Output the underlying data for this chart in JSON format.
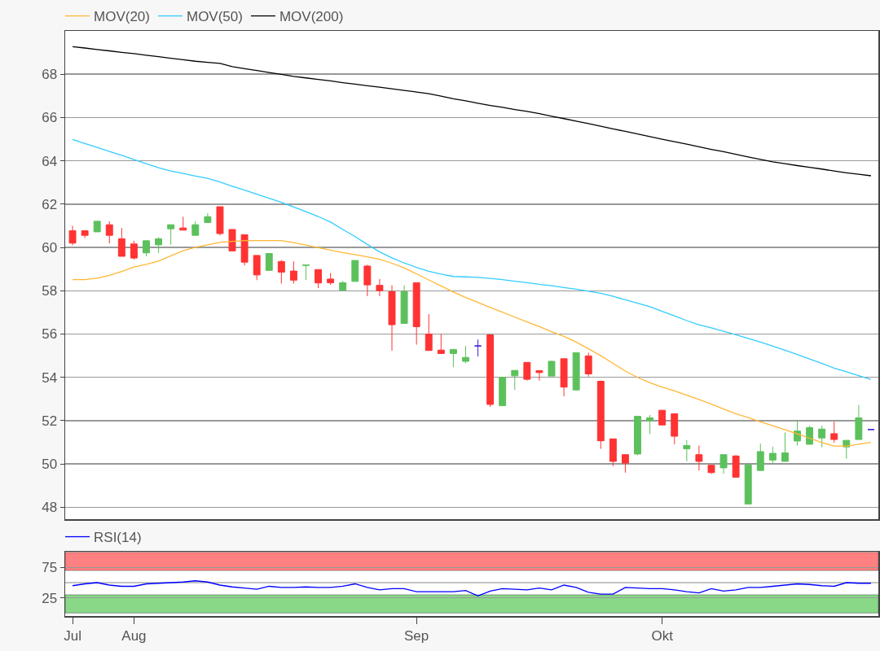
{
  "chart_data": [
    {
      "type": "candlestick",
      "ylim": [
        47.45,
        70
      ],
      "yticks": [
        48,
        50,
        52,
        54,
        56,
        58,
        60,
        62,
        64,
        66,
        68
      ],
      "grid": "y",
      "legend": "top left",
      "tick_labels": "y",
      "categories": [
        null,
        null,
        null,
        null,
        null,
        null,
        null,
        null,
        null,
        null,
        null,
        null,
        null,
        null,
        null,
        null,
        null,
        null,
        null,
        null,
        null,
        null,
        null,
        null,
        null,
        null,
        null,
        null,
        null,
        null,
        null,
        null,
        null,
        null,
        null,
        null,
        null,
        null,
        null,
        null,
        null,
        null,
        null,
        null,
        null,
        null,
        null,
        null,
        null,
        null,
        null,
        null,
        null,
        null,
        null,
        null,
        null,
        null,
        null,
        null,
        null,
        null,
        null,
        null,
        null,
        null
      ],
      "ohlc": [
        [
          60.77,
          61.0,
          60.1,
          60.2
        ],
        [
          60.77,
          60.77,
          60.43,
          60.56
        ],
        [
          60.72,
          61.21,
          60.72,
          61.21
        ],
        [
          61.05,
          61.21,
          60.19,
          60.56
        ],
        [
          60.4,
          60.9,
          59.59,
          59.59
        ],
        [
          60.16,
          60.31,
          59.44,
          59.51
        ],
        [
          59.75,
          60.31,
          59.59,
          60.31
        ],
        [
          60.12,
          60.47,
          59.75,
          60.4
        ],
        [
          60.86,
          61.05,
          60.12,
          61.05
        ],
        [
          60.9,
          61.42,
          60.8,
          60.8
        ],
        [
          60.56,
          61.21,
          60.56,
          61.05
        ],
        [
          61.15,
          61.58,
          61.15,
          61.42
        ],
        [
          61.88,
          61.88,
          60.56,
          60.64
        ],
        [
          60.83,
          60.83,
          59.84,
          59.84
        ],
        [
          60.59,
          60.59,
          59.17,
          59.32
        ],
        [
          59.63,
          59.63,
          58.49,
          58.73
        ],
        [
          58.94,
          59.72,
          58.94,
          59.72
        ],
        [
          59.35,
          59.42,
          58.33,
          58.86
        ],
        [
          58.91,
          59.36,
          58.33,
          58.49
        ],
        [
          59.17,
          59.19,
          58.49,
          59.19
        ],
        [
          58.98,
          58.98,
          58.12,
          58.36
        ],
        [
          58.54,
          58.82,
          58.27,
          58.37
        ],
        [
          58.02,
          58.45,
          58.02,
          58.37
        ],
        [
          58.43,
          59.4,
          58.43,
          59.4
        ],
        [
          59.14,
          59.2,
          57.75,
          58.27
        ],
        [
          58.25,
          58.54,
          57.75,
          58.0
        ],
        [
          57.96,
          58.25,
          55.23,
          56.43
        ],
        [
          56.49,
          58.25,
          56.49,
          57.96
        ],
        [
          58.37,
          58.37,
          55.51,
          56.34
        ],
        [
          56.0,
          56.92,
          55.24,
          55.24
        ],
        [
          55.26,
          56.0,
          55.1,
          55.1
        ],
        [
          55.1,
          55.29,
          54.47,
          55.29
        ],
        [
          54.74,
          55.45,
          54.65,
          54.92
        ],
        [
          55.45,
          55.75,
          54.96,
          55.45
        ],
        [
          55.96,
          55.96,
          52.63,
          52.75
        ],
        [
          52.69,
          54.0,
          52.69,
          54.0
        ],
        [
          54.07,
          54.32,
          53.42,
          54.32
        ],
        [
          54.69,
          54.69,
          53.85,
          53.91
        ],
        [
          54.31,
          54.31,
          53.85,
          54.22
        ],
        [
          54.06,
          54.77,
          54.06,
          54.74
        ],
        [
          54.86,
          54.86,
          53.12,
          53.55
        ],
        [
          53.42,
          55.14,
          53.38,
          55.14
        ],
        [
          54.99,
          55.14,
          54.04,
          54.16
        ],
        [
          53.82,
          53.85,
          50.7,
          51.07
        ],
        [
          51.16,
          51.16,
          49.9,
          50.12
        ],
        [
          50.43,
          50.43,
          49.6,
          50.04
        ],
        [
          50.46,
          52.2,
          50.4,
          52.2
        ],
        [
          51.99,
          52.26,
          51.38,
          52.13
        ],
        [
          52.48,
          52.48,
          51.8,
          51.8
        ],
        [
          52.32,
          52.32,
          50.91,
          51.28
        ],
        [
          50.7,
          51.1,
          50.12,
          50.85
        ],
        [
          50.43,
          50.85,
          49.7,
          50.12
        ],
        [
          49.94,
          49.94,
          49.54,
          49.6
        ],
        [
          49.82,
          50.43,
          49.55,
          50.43
        ],
        [
          50.37,
          50.4,
          49.39,
          49.39
        ],
        [
          48.15,
          50.06,
          48.15,
          49.96
        ],
        [
          49.7,
          50.94,
          49.7,
          50.57
        ],
        [
          50.18,
          50.79,
          50.0,
          50.49
        ],
        [
          50.12,
          51.46,
          50.12,
          50.51
        ],
        [
          51.06,
          52.04,
          50.85,
          51.52
        ],
        [
          50.91,
          51.77,
          50.91,
          51.68
        ],
        [
          51.2,
          51.77,
          50.77,
          51.61
        ],
        [
          51.4,
          51.95,
          50.98,
          51.13
        ],
        [
          50.79,
          51.09,
          50.24,
          51.09
        ],
        [
          51.13,
          52.72,
          51.13,
          52.13
        ],
        [
          51.59,
          51.59,
          51.59,
          51.59
        ]
      ],
      "colors": [
        "#ff3333",
        "#ff3333",
        "#5cc15c",
        "#ff3333",
        "#ff3333",
        "#ff3333",
        "#5cc15c",
        "#5cc15c",
        "#5cc15c",
        "#ff3333",
        "#5cc15c",
        "#5cc15c",
        "#ff3333",
        "#ff3333",
        "#ff3333",
        "#ff3333",
        "#5cc15c",
        "#ff3333",
        "#ff3333",
        "#5cc15c",
        "#ff3333",
        "#ff3333",
        "#5cc15c",
        "#5cc15c",
        "#ff3333",
        "#ff3333",
        "#ff3333",
        "#5cc15c",
        "#ff3333",
        "#ff3333",
        "#ff3333",
        "#5cc15c",
        "#5cc15c",
        "#4422dd",
        "#ff3333",
        "#5cc15c",
        "#5cc15c",
        "#ff3333",
        "#ff3333",
        "#5cc15c",
        "#ff3333",
        "#5cc15c",
        "#ff3333",
        "#ff3333",
        "#ff3333",
        "#ff3333",
        "#5cc15c",
        "#5cc15c",
        "#ff3333",
        "#ff3333",
        "#5cc15c",
        "#ff3333",
        "#ff3333",
        "#5cc15c",
        "#ff3333",
        "#5cc15c",
        "#5cc15c",
        "#5cc15c",
        "#5cc15c",
        "#5cc15c",
        "#5cc15c",
        "#5cc15c",
        "#ff3333",
        "#5cc15c",
        "#5cc15c",
        "#4422dd"
      ],
      "series": [
        {
          "name": "MOV(20)",
          "type": "line",
          "color": "#ffb733",
          "values": [
            58.51,
            58.51,
            58.58,
            58.71,
            58.89,
            59.1,
            59.22,
            59.37,
            59.61,
            59.85,
            60.01,
            60.12,
            60.23,
            60.28,
            60.32,
            60.32,
            60.32,
            60.32,
            60.22,
            60.11,
            59.99,
            59.88,
            59.76,
            59.67,
            59.57,
            59.45,
            59.27,
            59.06,
            58.78,
            58.5,
            58.22,
            57.94,
            57.69,
            57.46,
            57.23,
            57.01,
            56.78,
            56.56,
            56.34,
            56.11,
            55.89,
            55.63,
            55.32,
            55.0,
            54.65,
            54.29,
            54.0,
            53.75,
            53.55,
            53.37,
            53.18,
            52.98,
            52.76,
            52.54,
            52.32,
            52.14,
            51.95,
            51.77,
            51.58,
            51.39,
            51.19,
            50.99,
            50.83,
            50.83,
            50.91,
            51.0
          ]
        },
        {
          "name": "MOV(50)",
          "type": "line",
          "color": "#33ccff",
          "values": [
            64.99,
            64.8,
            64.62,
            64.43,
            64.25,
            64.06,
            63.87,
            63.68,
            63.53,
            63.42,
            63.3,
            63.19,
            63.02,
            62.83,
            62.65,
            62.46,
            62.27,
            62.08,
            61.87,
            61.65,
            61.43,
            61.17,
            60.83,
            60.5,
            60.14,
            59.79,
            59.52,
            59.28,
            59.08,
            58.9,
            58.77,
            58.66,
            58.64,
            58.62,
            58.57,
            58.51,
            58.44,
            58.37,
            58.3,
            58.23,
            58.15,
            58.07,
            57.98,
            57.88,
            57.74,
            57.58,
            57.42,
            57.26,
            57.05,
            56.84,
            56.62,
            56.43,
            56.29,
            56.13,
            55.97,
            55.8,
            55.63,
            55.44,
            55.25,
            55.06,
            54.85,
            54.64,
            54.43,
            54.26,
            54.08,
            53.9
          ]
        },
        {
          "name": "MOV(200)",
          "type": "line",
          "color": "#000000",
          "values": [
            69.27,
            69.21,
            69.14,
            69.08,
            69.01,
            68.95,
            68.88,
            68.81,
            68.74,
            68.67,
            68.6,
            68.55,
            68.5,
            68.35,
            68.26,
            68.17,
            68.08,
            67.99,
            67.9,
            67.83,
            67.76,
            67.69,
            67.61,
            67.54,
            67.47,
            67.4,
            67.33,
            67.25,
            67.18,
            67.1,
            66.99,
            66.87,
            66.77,
            66.66,
            66.56,
            66.47,
            66.37,
            66.28,
            66.18,
            66.06,
            65.95,
            65.83,
            65.72,
            65.6,
            65.48,
            65.36,
            65.24,
            65.12,
            65.0,
            64.88,
            64.77,
            64.65,
            64.53,
            64.42,
            64.3,
            64.18,
            64.07,
            63.95,
            63.87,
            63.78,
            63.7,
            63.62,
            63.53,
            63.45,
            63.38,
            63.31
          ]
        }
      ]
    },
    {
      "type": "line",
      "ylim": [
        -5,
        101
      ],
      "yticks": [
        25,
        75
      ],
      "grid": "y",
      "legend": "top left",
      "categories": [
        "Jul",
        null,
        null,
        null,
        null,
        "Aug",
        null,
        null,
        null,
        null,
        null,
        null,
        null,
        null,
        null,
        null,
        null,
        null,
        null,
        null,
        null,
        null,
        null,
        null,
        null,
        null,
        null,
        null,
        "Sep",
        null,
        null,
        null,
        null,
        null,
        null,
        null,
        null,
        null,
        null,
        null,
        null,
        null,
        null,
        null,
        null,
        null,
        null,
        null,
        "Okt",
        null,
        null,
        null,
        null,
        null,
        null,
        null,
        null,
        null,
        null,
        null,
        null,
        null,
        null,
        null,
        null,
        null
      ],
      "bands": [
        {
          "axis": "y",
          "from": 70,
          "to": 100,
          "color": "#ff8080"
        },
        {
          "axis": "y",
          "from": 0,
          "to": 30,
          "color": "#88d888"
        }
      ],
      "ref_lines": [
        {
          "axis": "y",
          "value": 50,
          "color": "#888888"
        }
      ],
      "series": [
        {
          "name": "RSI(14)",
          "color": "#0000ff",
          "values": [
            45,
            48,
            50,
            46,
            44,
            44,
            48,
            49,
            50,
            51,
            53,
            51,
            46,
            43,
            41,
            39,
            44,
            42,
            42,
            43,
            42,
            42,
            44,
            48,
            42,
            38,
            40,
            40,
            35,
            35,
            35,
            35,
            37,
            28,
            36,
            40,
            39,
            38,
            41,
            38,
            46,
            42,
            34,
            31,
            31,
            42,
            41,
            40,
            40,
            38,
            35,
            33,
            40,
            36,
            38,
            42,
            42,
            44,
            46,
            48,
            47,
            45,
            44,
            50,
            49,
            49
          ]
        }
      ]
    }
  ]
}
